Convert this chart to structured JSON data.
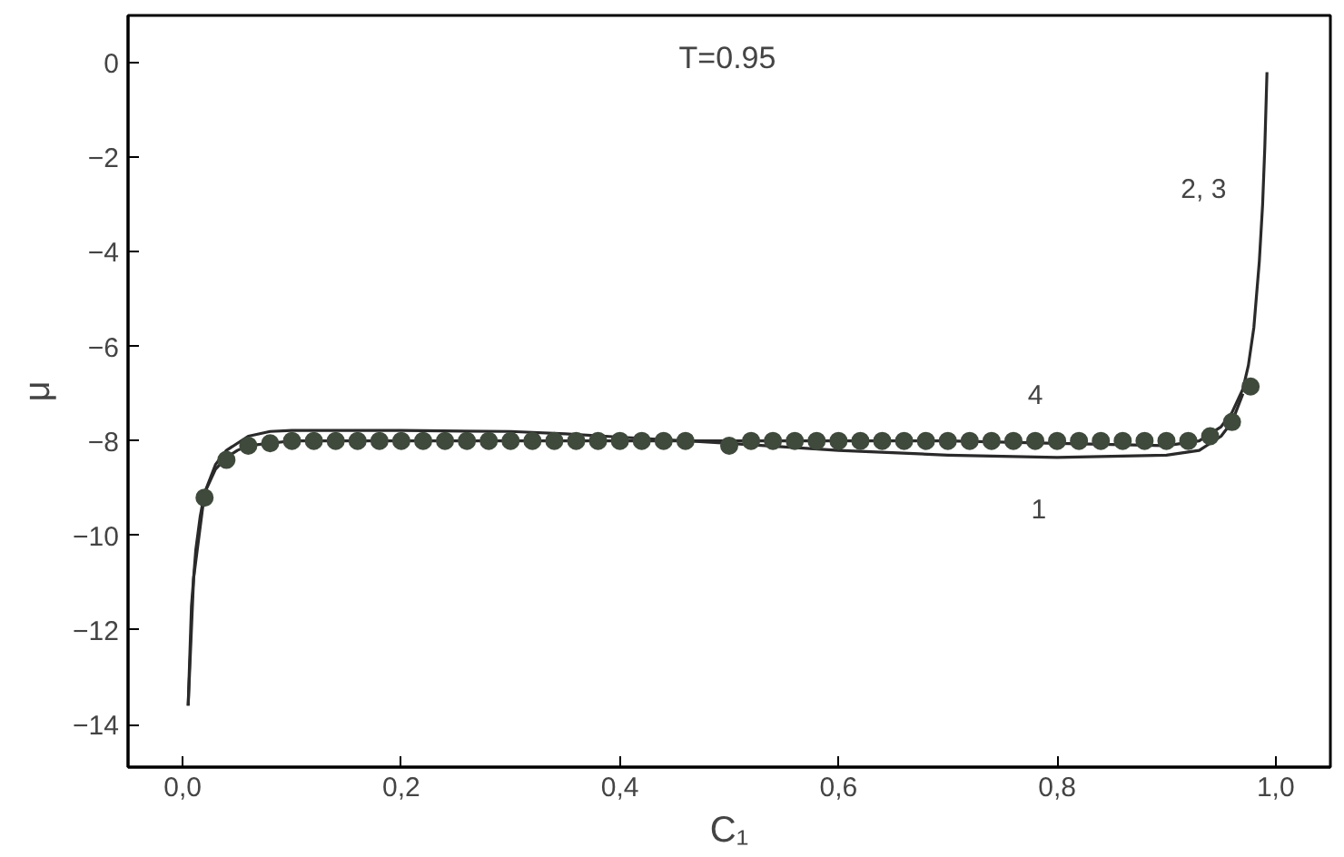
{
  "chart_data": {
    "type": "line",
    "xlabel": "C₁",
    "ylabel": "μ",
    "xlim": [
      -0.05,
      1.05
    ],
    "ylim": [
      -14.9,
      1.0
    ],
    "xticks": [
      {
        "value": 0,
        "label": "0,0"
      },
      {
        "value": 0.2,
        "label": "0,2"
      },
      {
        "value": 0.4,
        "label": "0,4"
      },
      {
        "value": 0.6,
        "label": "0,6"
      },
      {
        "value": 0.8,
        "label": "0,8"
      },
      {
        "value": 1.0,
        "label": "1,0"
      }
    ],
    "yticks": [
      0,
      -2,
      -4,
      -6,
      -8,
      -10,
      -12,
      -14
    ],
    "grid": false,
    "legend": false,
    "line_style": "solid",
    "series": [
      {
        "name": "2, 3",
        "color": "#2a2a2a",
        "x": [
          0.005,
          0.008,
          0.012,
          0.016,
          0.02,
          0.03,
          0.04,
          0.05,
          0.06,
          0.08,
          0.1,
          0.2,
          0.3,
          0.4,
          0.5,
          0.6,
          0.7,
          0.8,
          0.9,
          0.93,
          0.95,
          0.96,
          0.97,
          0.975,
          0.98,
          0.985,
          0.988,
          0.99,
          0.992
        ],
        "values": [
          -13.6,
          -11.5,
          -10.3,
          -9.6,
          -9.1,
          -8.6,
          -8.35,
          -8.2,
          -8.1,
          -8.05,
          -8.0,
          -8.0,
          -8.0,
          -8.0,
          -8.0,
          -8.0,
          -8.0,
          -8.05,
          -8.1,
          -8.0,
          -7.7,
          -7.4,
          -6.9,
          -6.4,
          -5.6,
          -4.2,
          -3.0,
          -1.8,
          -0.2
        ]
      },
      {
        "name": "1",
        "color": "#2a2a2a",
        "x": [
          0.005,
          0.01,
          0.02,
          0.03,
          0.04,
          0.06,
          0.08,
          0.1,
          0.2,
          0.3,
          0.35,
          0.4,
          0.5,
          0.6,
          0.7,
          0.8,
          0.9,
          0.93,
          0.95,
          0.96,
          0.97
        ],
        "values": [
          -13.6,
          -10.9,
          -9.1,
          -8.5,
          -8.2,
          -7.9,
          -7.8,
          -7.78,
          -7.78,
          -7.8,
          -7.85,
          -7.92,
          -8.05,
          -8.2,
          -8.3,
          -8.35,
          -8.3,
          -8.2,
          -7.9,
          -7.6,
          -7.0
        ]
      },
      {
        "name": "4",
        "type": "scatter",
        "color": "#3f4a3c",
        "marker": "circle",
        "x": [
          0.02,
          0.04,
          0.06,
          0.08,
          0.1,
          0.12,
          0.14,
          0.16,
          0.18,
          0.2,
          0.22,
          0.24,
          0.26,
          0.28,
          0.3,
          0.32,
          0.34,
          0.36,
          0.38,
          0.4,
          0.42,
          0.44,
          0.46,
          0.5,
          0.52,
          0.54,
          0.56,
          0.58,
          0.6,
          0.62,
          0.64,
          0.66,
          0.68,
          0.7,
          0.72,
          0.74,
          0.76,
          0.78,
          0.8,
          0.82,
          0.84,
          0.86,
          0.88,
          0.9,
          0.92,
          0.94,
          0.96,
          0.977
        ],
        "values": [
          -9.2,
          -8.4,
          -8.1,
          -8.05,
          -8.0,
          -8.0,
          -8.0,
          -8.0,
          -8.0,
          -8.0,
          -8.0,
          -8.0,
          -8.0,
          -8.0,
          -8.0,
          -8.0,
          -8.0,
          -8.0,
          -8.0,
          -8.0,
          -8.0,
          -8.0,
          -8.0,
          -8.1,
          -8.0,
          -8.0,
          -8.0,
          -8.0,
          -8.0,
          -8.0,
          -8.0,
          -8.0,
          -8.0,
          -8.0,
          -8.0,
          -8.0,
          -8.0,
          -8.0,
          -8.0,
          -8.0,
          -8.0,
          -8.0,
          -8.0,
          -8.0,
          -8.0,
          -7.9,
          -7.6,
          -6.85
        ]
      }
    ],
    "annotations": [
      "T=0.95"
    ]
  }
}
